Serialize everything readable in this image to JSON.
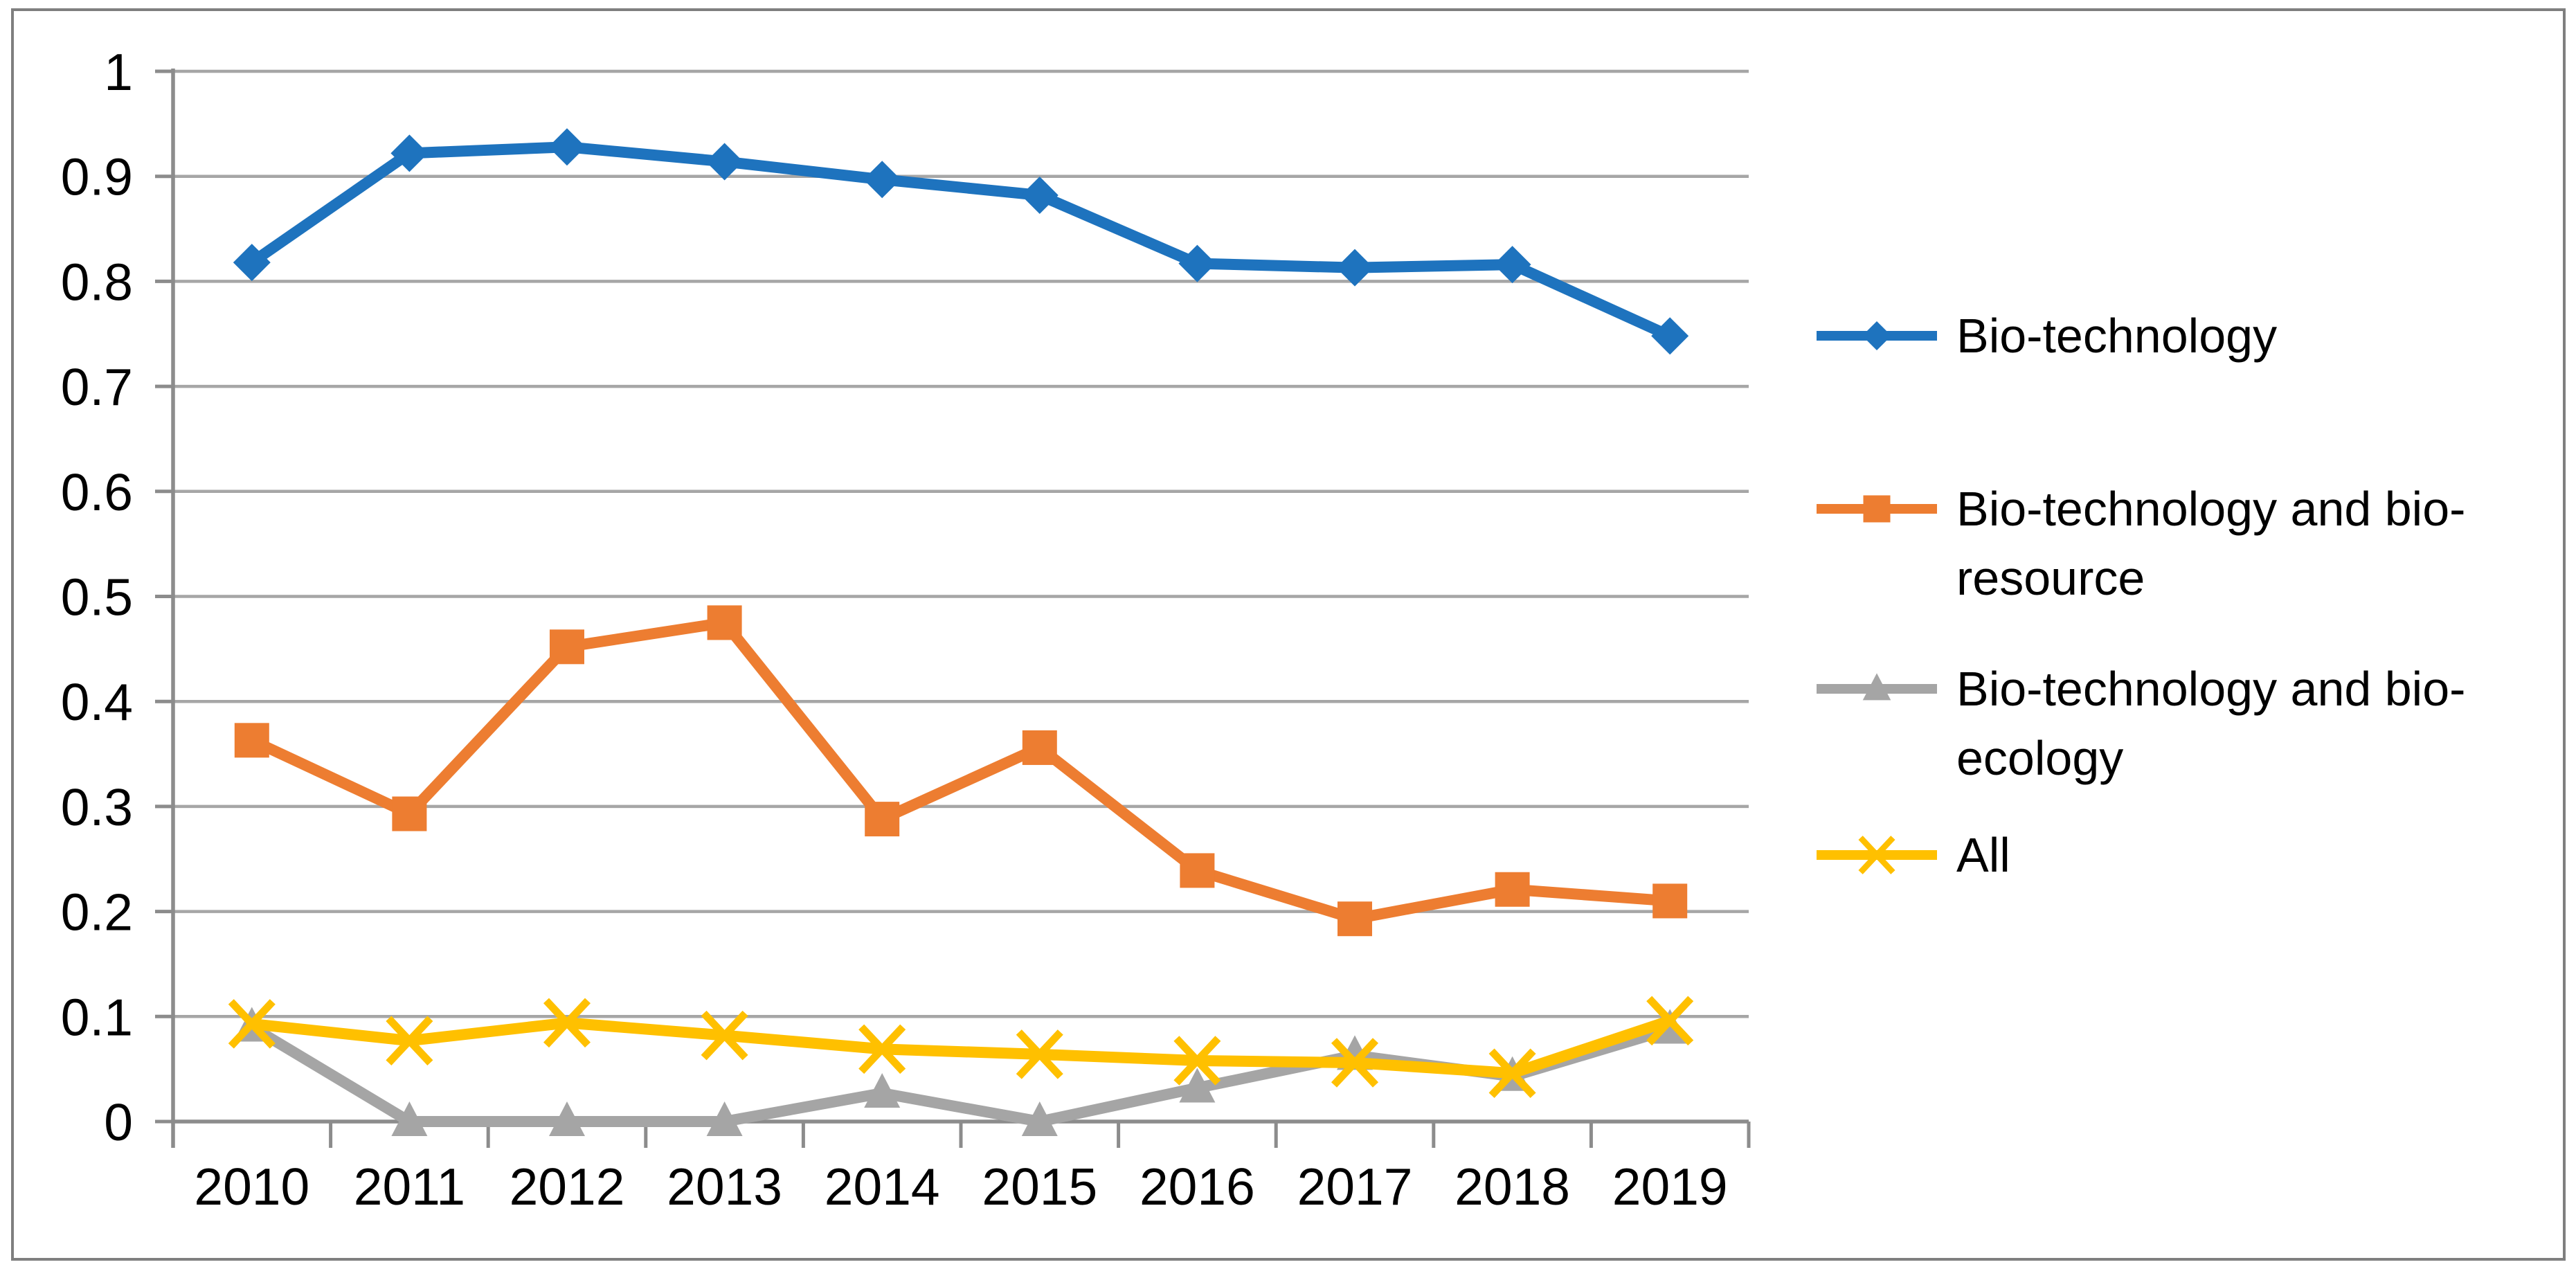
{
  "page": {
    "background": "#FFFFFF"
  },
  "frame": {
    "border_color": "#7F7F7F"
  },
  "chart_data": {
    "type": "line",
    "title": "",
    "xlabel": "",
    "ylabel": "",
    "categories": [
      "2010",
      "2011",
      "2012",
      "2013",
      "2014",
      "2015",
      "2016",
      "2017",
      "2018",
      "2019"
    ],
    "series": [
      {
        "name": "Bio-technology",
        "color": "#1E73BE",
        "marker": "diamond",
        "values": [
          0.818,
          0.922,
          0.928,
          0.914,
          0.897,
          0.882,
          0.817,
          0.813,
          0.816,
          0.748
        ]
      },
      {
        "name": "Bio-technology and bio-resource",
        "color": "#ED7D31",
        "marker": "square",
        "values": [
          0.363,
          0.293,
          0.452,
          0.475,
          0.288,
          0.356,
          0.239,
          0.193,
          0.221,
          0.21
        ]
      },
      {
        "name": "Bio-technology and bio-ecology",
        "color": "#A5A5A5",
        "marker": "triangle",
        "values": [
          0.09,
          0.0,
          0.0,
          0.0,
          0.027,
          0.0,
          0.032,
          0.063,
          0.043,
          0.088
        ]
      },
      {
        "name": "All",
        "color": "#FFC000",
        "marker": "x",
        "values": [
          0.093,
          0.077,
          0.094,
          0.082,
          0.069,
          0.064,
          0.058,
          0.056,
          0.046,
          0.096
        ]
      }
    ],
    "ylim": [
      0,
      1
    ],
    "ytick_step": 0.1,
    "ytick_labels": [
      "0",
      "0.1",
      "0.2",
      "0.3",
      "0.4",
      "0.5",
      "0.6",
      "0.7",
      "0.8",
      "0.9",
      "1"
    ],
    "grid": "horizontal",
    "legend_position": "right",
    "colors": {
      "gridline": "#A6A6A6",
      "axis": "#8C8C8C",
      "tick": "#8C8C8C",
      "text": "#000000"
    }
  }
}
